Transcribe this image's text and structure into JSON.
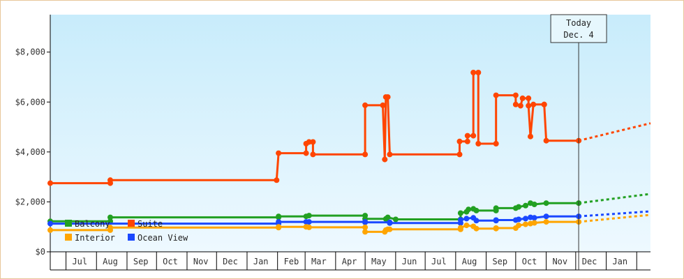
{
  "chart_data": {
    "type": "line",
    "title": "",
    "xlabel": "",
    "ylabel": "",
    "ylim": [
      0,
      9500
    ],
    "x_range": [
      "2013-06-15",
      "2015-02-15"
    ],
    "y_ticks": [
      {
        "value": 0,
        "label": "$0"
      },
      {
        "value": 2000,
        "label": "$2,000"
      },
      {
        "value": 4000,
        "label": "$4,000"
      },
      {
        "value": 6000,
        "label": "$6,000"
      },
      {
        "value": 8000,
        "label": "$8,000"
      }
    ],
    "x_ticks": [
      {
        "date": "2013-07-15",
        "label": "Jul"
      },
      {
        "date": "2013-08-15",
        "label": "Aug"
      },
      {
        "date": "2013-09-15",
        "label": "Sep"
      },
      {
        "date": "2013-10-15",
        "label": "Oct"
      },
      {
        "date": "2013-11-15",
        "label": "Nov"
      },
      {
        "date": "2013-12-15",
        "label": "Dec"
      },
      {
        "date": "2014-01-15",
        "label": "Jan"
      },
      {
        "date": "2014-02-15",
        "label": "Feb"
      },
      {
        "date": "2014-03-15",
        "label": "Mar"
      },
      {
        "date": "2014-04-15",
        "label": "Apr"
      },
      {
        "date": "2014-05-15",
        "label": "May"
      },
      {
        "date": "2014-06-15",
        "label": "Jun"
      },
      {
        "date": "2014-07-15",
        "label": "Jul"
      },
      {
        "date": "2014-08-15",
        "label": "Aug"
      },
      {
        "date": "2014-09-15",
        "label": "Sep"
      },
      {
        "date": "2014-10-15",
        "label": "Oct"
      },
      {
        "date": "2014-11-15",
        "label": "Nov"
      },
      {
        "date": "2014-12-15",
        "label": "Dec"
      },
      {
        "date": "2015-01-15",
        "label": "Jan"
      }
    ],
    "x_boundaries": [
      "2013-07-01",
      "2013-08-01",
      "2013-09-01",
      "2013-10-01",
      "2013-11-01",
      "2013-12-01",
      "2014-01-01",
      "2014-02-01",
      "2014-03-01",
      "2014-04-01",
      "2014-05-01",
      "2014-06-01",
      "2014-07-01",
      "2014-08-01",
      "2014-09-01",
      "2014-10-01",
      "2014-11-01",
      "2014-12-01",
      "2015-01-01",
      "2015-02-01"
    ],
    "today": {
      "date": "2014-12-04",
      "line1": "Today",
      "line2": "Dec. 4"
    },
    "legend_placement": "bottom-left",
    "grid": false,
    "series": [
      {
        "name": "Suite",
        "color": "#ff4500",
        "points": [
          [
            "2013-06-15",
            2750
          ],
          [
            "2013-08-15",
            2750
          ],
          [
            "2013-08-15",
            2870
          ],
          [
            "2014-01-31",
            2870
          ],
          [
            "2014-02-02",
            3950
          ],
          [
            "2014-03-02",
            3950
          ],
          [
            "2014-03-02",
            4330
          ],
          [
            "2014-03-05",
            4400
          ],
          [
            "2014-03-09",
            4400
          ],
          [
            "2014-03-09",
            3900
          ],
          [
            "2014-05-01",
            3900
          ],
          [
            "2014-05-01",
            5870
          ],
          [
            "2014-05-19",
            5870
          ],
          [
            "2014-05-21",
            3700
          ],
          [
            "2014-05-22",
            6200
          ],
          [
            "2014-05-24",
            6200
          ],
          [
            "2014-05-26",
            3900
          ],
          [
            "2014-08-05",
            3900
          ],
          [
            "2014-08-05",
            4420
          ],
          [
            "2014-08-13",
            4420
          ],
          [
            "2014-08-13",
            4650
          ],
          [
            "2014-08-19",
            4650
          ],
          [
            "2014-08-19",
            7180
          ],
          [
            "2014-08-24",
            7180
          ],
          [
            "2014-08-24",
            4330
          ],
          [
            "2014-09-11",
            4330
          ],
          [
            "2014-09-11",
            6270
          ],
          [
            "2014-10-01",
            6270
          ],
          [
            "2014-10-01",
            5900
          ],
          [
            "2014-10-06",
            5850
          ],
          [
            "2014-10-08",
            6150
          ],
          [
            "2014-10-14",
            6150
          ],
          [
            "2014-10-14",
            5850
          ],
          [
            "2014-10-16",
            4620
          ],
          [
            "2014-10-19",
            5900
          ],
          [
            "2014-10-30",
            5900
          ],
          [
            "2014-10-30",
            5900
          ],
          [
            "2014-11-01",
            4450
          ],
          [
            "2014-12-04",
            4450
          ]
        ],
        "projection": [
          [
            "2014-12-04",
            4450
          ],
          [
            "2015-02-15",
            5150
          ]
        ]
      },
      {
        "name": "Balcony",
        "color": "#22a022",
        "points": [
          [
            "2013-06-15",
            1220
          ],
          [
            "2013-08-15",
            1220
          ],
          [
            "2013-08-15",
            1380
          ],
          [
            "2014-02-02",
            1380
          ],
          [
            "2014-02-02",
            1420
          ],
          [
            "2014-03-02",
            1420
          ],
          [
            "2014-03-05",
            1450
          ],
          [
            "2014-05-01",
            1450
          ],
          [
            "2014-05-01",
            1320
          ],
          [
            "2014-05-22",
            1320
          ],
          [
            "2014-05-24",
            1380
          ],
          [
            "2014-06-01",
            1300
          ],
          [
            "2014-08-06",
            1300
          ],
          [
            "2014-08-06",
            1550
          ],
          [
            "2014-08-12",
            1600
          ],
          [
            "2014-08-14",
            1700
          ],
          [
            "2014-08-19",
            1720
          ],
          [
            "2014-08-22",
            1650
          ],
          [
            "2014-09-11",
            1650
          ],
          [
            "2014-09-11",
            1750
          ],
          [
            "2014-10-01",
            1750
          ],
          [
            "2014-10-04",
            1800
          ],
          [
            "2014-10-11",
            1850
          ],
          [
            "2014-10-16",
            1950
          ],
          [
            "2014-10-20",
            1900
          ],
          [
            "2014-11-01",
            1950
          ],
          [
            "2014-12-04",
            1950
          ]
        ],
        "projection": [
          [
            "2014-12-04",
            1950
          ],
          [
            "2015-02-15",
            2320
          ]
        ]
      },
      {
        "name": "Ocean View",
        "color": "#1a48ff",
        "points": [
          [
            "2013-06-15",
            1130
          ],
          [
            "2014-02-02",
            1130
          ],
          [
            "2014-02-02",
            1200
          ],
          [
            "2014-03-02",
            1200
          ],
          [
            "2014-03-05",
            1200
          ],
          [
            "2014-05-01",
            1200
          ],
          [
            "2014-05-01",
            1180
          ],
          [
            "2014-05-26",
            1180
          ],
          [
            "2014-05-26",
            1150
          ],
          [
            "2014-08-06",
            1150
          ],
          [
            "2014-08-06",
            1280
          ],
          [
            "2014-08-12",
            1330
          ],
          [
            "2014-08-19",
            1360
          ],
          [
            "2014-08-22",
            1250
          ],
          [
            "2014-09-11",
            1250
          ],
          [
            "2014-09-11",
            1270
          ],
          [
            "2014-10-01",
            1270
          ],
          [
            "2014-10-04",
            1300
          ],
          [
            "2014-10-11",
            1330
          ],
          [
            "2014-10-16",
            1380
          ],
          [
            "2014-10-20",
            1360
          ],
          [
            "2014-11-01",
            1420
          ],
          [
            "2014-12-04",
            1420
          ]
        ],
        "projection": [
          [
            "2014-12-04",
            1420
          ],
          [
            "2015-02-15",
            1620
          ]
        ]
      },
      {
        "name": "Interior",
        "color": "#ffa500",
        "points": [
          [
            "2013-06-15",
            870
          ],
          [
            "2013-08-15",
            870
          ],
          [
            "2013-08-15",
            970
          ],
          [
            "2014-02-02",
            970
          ],
          [
            "2014-02-02",
            1000
          ],
          [
            "2014-03-02",
            1000
          ],
          [
            "2014-03-05",
            980
          ],
          [
            "2014-05-01",
            980
          ],
          [
            "2014-05-01",
            800
          ],
          [
            "2014-05-21",
            800
          ],
          [
            "2014-05-22",
            870
          ],
          [
            "2014-05-24",
            900
          ],
          [
            "2014-05-26",
            900
          ],
          [
            "2014-08-06",
            900
          ],
          [
            "2014-08-06",
            960
          ],
          [
            "2014-08-12",
            1060
          ],
          [
            "2014-08-19",
            1020
          ],
          [
            "2014-08-22",
            930
          ],
          [
            "2014-09-11",
            930
          ],
          [
            "2014-09-11",
            950
          ],
          [
            "2014-10-01",
            950
          ],
          [
            "2014-10-04",
            1060
          ],
          [
            "2014-10-11",
            1100
          ],
          [
            "2014-10-16",
            1130
          ],
          [
            "2014-10-20",
            1160
          ],
          [
            "2014-11-01",
            1200
          ],
          [
            "2014-12-04",
            1200
          ]
        ],
        "projection": [
          [
            "2014-12-04",
            1200
          ],
          [
            "2015-02-15",
            1480
          ]
        ]
      }
    ]
  },
  "colors": {
    "frame_border": "#e8c79a",
    "plot_bg_top": "#c8ecfb",
    "plot_bg_bottom": "#eef9ff"
  }
}
